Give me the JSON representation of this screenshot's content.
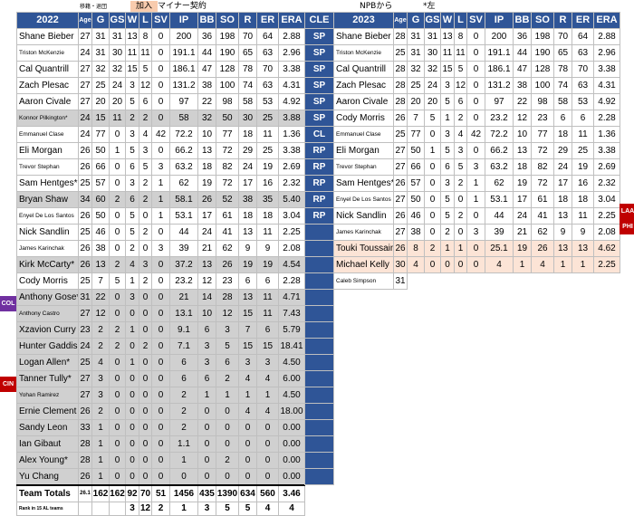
{
  "legend": {
    "small": "移籍・退団",
    "added": "加入",
    "minor": "マイナー契約",
    "npb": "NPBから",
    "lefty": "*左"
  },
  "headers": [
    "G",
    "GS",
    "W",
    "L",
    "SV",
    "IP",
    "BB",
    "SO",
    "R",
    "ER",
    "ERA"
  ],
  "age_header": "Age",
  "mid_header": "CLE",
  "left": {
    "year": "2022",
    "rows": [
      {
        "name": "Shane Bieber",
        "age": "27",
        "s": [
          "31",
          "31",
          "13",
          "8",
          "0",
          "200",
          "36",
          "198",
          "70",
          "64",
          "2.88"
        ]
      },
      {
        "name": "Triston McKenzie",
        "small": true,
        "age": "24",
        "s": [
          "31",
          "30",
          "11",
          "11",
          "0",
          "191.1",
          "44",
          "190",
          "65",
          "63",
          "2.96"
        ]
      },
      {
        "name": "Cal Quantrill",
        "age": "27",
        "s": [
          "32",
          "32",
          "15",
          "5",
          "0",
          "186.1",
          "47",
          "128",
          "78",
          "70",
          "3.38"
        ]
      },
      {
        "name": "Zach Plesac",
        "age": "27",
        "s": [
          "25",
          "24",
          "3",
          "12",
          "0",
          "131.2",
          "38",
          "100",
          "74",
          "63",
          "4.31"
        ]
      },
      {
        "name": "Aaron Civale",
        "age": "27",
        "s": [
          "20",
          "20",
          "5",
          "6",
          "0",
          "97",
          "22",
          "98",
          "58",
          "53",
          "4.92"
        ]
      },
      {
        "name": "Konnor Pilkington*",
        "small": true,
        "gray": true,
        "age": "24",
        "s": [
          "15",
          "11",
          "2",
          "2",
          "0",
          "58",
          "32",
          "50",
          "30",
          "25",
          "3.88"
        ]
      },
      {
        "name": "Emmanuel Clase",
        "small": true,
        "age": "24",
        "s": [
          "77",
          "0",
          "3",
          "4",
          "42",
          "72.2",
          "10",
          "77",
          "18",
          "11",
          "1.36"
        ]
      },
      {
        "name": "Eli Morgan",
        "age": "26",
        "s": [
          "50",
          "1",
          "5",
          "3",
          "0",
          "66.2",
          "13",
          "72",
          "29",
          "25",
          "3.38"
        ]
      },
      {
        "name": "Trevor Stephan",
        "small": true,
        "age": "26",
        "s": [
          "66",
          "0",
          "6",
          "5",
          "3",
          "63.2",
          "18",
          "82",
          "24",
          "19",
          "2.69"
        ]
      },
      {
        "name": "Sam Hentges*",
        "age": "25",
        "s": [
          "57",
          "0",
          "3",
          "2",
          "1",
          "62",
          "19",
          "72",
          "17",
          "16",
          "2.32"
        ]
      },
      {
        "name": "Bryan Shaw",
        "gray": true,
        "age": "34",
        "s": [
          "60",
          "2",
          "6",
          "2",
          "1",
          "58.1",
          "26",
          "52",
          "38",
          "35",
          "5.40"
        ]
      },
      {
        "name": "Enyel De Los Santos",
        "small": true,
        "age": "26",
        "s": [
          "50",
          "0",
          "5",
          "0",
          "1",
          "53.1",
          "17",
          "61",
          "18",
          "18",
          "3.04"
        ]
      },
      {
        "name": "Nick Sandlin",
        "age": "25",
        "s": [
          "46",
          "0",
          "5",
          "2",
          "0",
          "44",
          "24",
          "41",
          "13",
          "11",
          "2.25"
        ]
      },
      {
        "name": "James Karinchak",
        "small": true,
        "age": "26",
        "s": [
          "38",
          "0",
          "2",
          "0",
          "3",
          "39",
          "21",
          "62",
          "9",
          "9",
          "2.08"
        ]
      },
      {
        "name": "Kirk McCarty*",
        "gray": true,
        "age": "26",
        "s": [
          "13",
          "2",
          "4",
          "3",
          "0",
          "37.2",
          "13",
          "26",
          "19",
          "19",
          "4.54"
        ]
      },
      {
        "name": "Cody Morris",
        "age": "25",
        "s": [
          "7",
          "5",
          "1",
          "2",
          "0",
          "23.2",
          "12",
          "23",
          "6",
          "6",
          "2.28"
        ]
      },
      {
        "name": "Anthony Gose*",
        "gray": true,
        "age": "31",
        "s": [
          "22",
          "0",
          "3",
          "0",
          "0",
          "21",
          "14",
          "28",
          "13",
          "11",
          "4.71"
        ]
      },
      {
        "name": "Anthony Castro",
        "small": true,
        "gray": true,
        "age": "27",
        "s": [
          "12",
          "0",
          "0",
          "0",
          "0",
          "13.1",
          "10",
          "12",
          "15",
          "11",
          "7.43"
        ]
      },
      {
        "name": "Xzavion Curry",
        "gray": true,
        "age": "23",
        "s": [
          "2",
          "2",
          "1",
          "0",
          "0",
          "9.1",
          "6",
          "3",
          "7",
          "6",
          "5.79"
        ]
      },
      {
        "name": "Hunter Gaddis",
        "gray": true,
        "age": "24",
        "s": [
          "2",
          "2",
          "0",
          "2",
          "0",
          "7.1",
          "3",
          "5",
          "15",
          "15",
          "18.41"
        ]
      },
      {
        "name": "Logan Allen*",
        "gray": true,
        "age": "25",
        "s": [
          "4",
          "0",
          "1",
          "0",
          "0",
          "6",
          "3",
          "6",
          "3",
          "3",
          "4.50"
        ]
      },
      {
        "name": "Tanner Tully*",
        "gray": true,
        "age": "27",
        "s": [
          "3",
          "0",
          "0",
          "0",
          "0",
          "6",
          "6",
          "2",
          "4",
          "4",
          "6.00"
        ]
      },
      {
        "name": "Yohan Ramirez",
        "small": true,
        "gray": true,
        "age": "27",
        "s": [
          "3",
          "0",
          "0",
          "0",
          "0",
          "2",
          "1",
          "1",
          "1",
          "1",
          "4.50"
        ]
      },
      {
        "name": "Ernie Clement",
        "gray": true,
        "age": "26",
        "s": [
          "2",
          "0",
          "0",
          "0",
          "0",
          "2",
          "0",
          "0",
          "4",
          "4",
          "18.00"
        ]
      },
      {
        "name": "Sandy Leon",
        "gray": true,
        "age": "33",
        "s": [
          "1",
          "0",
          "0",
          "0",
          "0",
          "2",
          "0",
          "0",
          "0",
          "0",
          "0.00"
        ]
      },
      {
        "name": "Ian Gibaut",
        "gray": true,
        "age": "28",
        "s": [
          "1",
          "0",
          "0",
          "0",
          "0",
          "1.1",
          "0",
          "0",
          "0",
          "0",
          "0.00"
        ]
      },
      {
        "name": "Alex Young*",
        "gray": true,
        "age": "28",
        "s": [
          "1",
          "0",
          "0",
          "0",
          "0",
          "1",
          "0",
          "2",
          "0",
          "0",
          "0.00"
        ]
      },
      {
        "name": "Yu Chang",
        "gray": true,
        "age": "26",
        "s": [
          "1",
          "0",
          "0",
          "0",
          "0",
          "0",
          "0",
          "0",
          "0",
          "0",
          "0.00"
        ]
      }
    ],
    "totals": {
      "name": "Team Totals",
      "age": "26.1",
      "s": [
        "162",
        "162",
        "92",
        "70",
        "51",
        "1456",
        "435",
        "1390",
        "634",
        "560",
        "3.46"
      ]
    },
    "ranks": {
      "name": "Rank in 15 AL teams",
      "s": [
        "",
        "",
        "3",
        "12",
        "2",
        "1",
        "3",
        "5",
        "5",
        "4",
        "4"
      ]
    }
  },
  "roles": [
    "SP",
    "SP",
    "SP",
    "SP",
    "SP",
    "SP",
    "CL",
    "RP",
    "RP",
    "RP",
    "RP",
    "RP"
  ],
  "right": {
    "year": "2023",
    "rows": [
      {
        "name": "Shane Bieber",
        "age": "28",
        "s": [
          "31",
          "31",
          "13",
          "8",
          "0",
          "200",
          "36",
          "198",
          "70",
          "64",
          "2.88"
        ]
      },
      {
        "name": "Triston McKenzie",
        "small": true,
        "age": "25",
        "s": [
          "31",
          "30",
          "11",
          "11",
          "0",
          "191.1",
          "44",
          "190",
          "65",
          "63",
          "2.96"
        ]
      },
      {
        "name": "Cal Quantrill",
        "age": "28",
        "s": [
          "32",
          "32",
          "15",
          "5",
          "0",
          "186.1",
          "47",
          "128",
          "78",
          "70",
          "3.38"
        ]
      },
      {
        "name": "Zach Plesac",
        "age": "28",
        "s": [
          "25",
          "24",
          "3",
          "12",
          "0",
          "131.2",
          "38",
          "100",
          "74",
          "63",
          "4.31"
        ]
      },
      {
        "name": "Aaron Civale",
        "age": "28",
        "s": [
          "20",
          "20",
          "5",
          "6",
          "0",
          "97",
          "22",
          "98",
          "58",
          "53",
          "4.92"
        ]
      },
      {
        "name": "Cody Morris",
        "age": "26",
        "s": [
          "7",
          "5",
          "1",
          "2",
          "0",
          "23.2",
          "12",
          "23",
          "6",
          "6",
          "2.28"
        ]
      },
      {
        "name": "Emmanuel Clase",
        "small": true,
        "age": "25",
        "s": [
          "77",
          "0",
          "3",
          "4",
          "42",
          "72.2",
          "10",
          "77",
          "18",
          "11",
          "1.36"
        ]
      },
      {
        "name": "Eli Morgan",
        "age": "27",
        "s": [
          "50",
          "1",
          "5",
          "3",
          "0",
          "66.2",
          "13",
          "72",
          "29",
          "25",
          "3.38"
        ]
      },
      {
        "name": "Trevor Stephan",
        "small": true,
        "age": "27",
        "s": [
          "66",
          "0",
          "6",
          "5",
          "3",
          "63.2",
          "18",
          "82",
          "24",
          "19",
          "2.69"
        ]
      },
      {
        "name": "Sam Hentges*",
        "age": "26",
        "s": [
          "57",
          "0",
          "3",
          "2",
          "1",
          "62",
          "19",
          "72",
          "17",
          "16",
          "2.32"
        ]
      },
      {
        "name": "Enyel De Los Santos",
        "small": true,
        "age": "27",
        "s": [
          "50",
          "0",
          "5",
          "0",
          "1",
          "53.1",
          "17",
          "61",
          "18",
          "18",
          "3.04"
        ]
      },
      {
        "name": "Nick Sandlin",
        "age": "26",
        "s": [
          "46",
          "0",
          "5",
          "2",
          "0",
          "44",
          "24",
          "41",
          "13",
          "11",
          "2.25"
        ]
      },
      {
        "name": "James Karinchak",
        "small": true,
        "age": "27",
        "s": [
          "38",
          "0",
          "2",
          "0",
          "3",
          "39",
          "21",
          "62",
          "9",
          "9",
          "2.08"
        ]
      },
      {
        "name": "Touki Toussaint",
        "peach": true,
        "age": "26",
        "s": [
          "8",
          "2",
          "1",
          "1",
          "0",
          "25.1",
          "19",
          "26",
          "13",
          "13",
          "4.62"
        ]
      },
      {
        "name": "Michael Kelly",
        "peach": true,
        "age": "30",
        "s": [
          "4",
          "0",
          "0",
          "0",
          "0",
          "4",
          "1",
          "4",
          "1",
          "1",
          "2.25"
        ]
      },
      {
        "name": "Caleb Simpson",
        "small": true,
        "age": "31",
        "s": null
      }
    ]
  },
  "team_tags": [
    {
      "label": "LAA",
      "color": "#c00000"
    },
    {
      "label": "PHI",
      "color": "#c00000"
    },
    {
      "label": "COL",
      "color": "#7030a0"
    },
    {
      "label": "CIN",
      "color": "#c00000"
    }
  ]
}
